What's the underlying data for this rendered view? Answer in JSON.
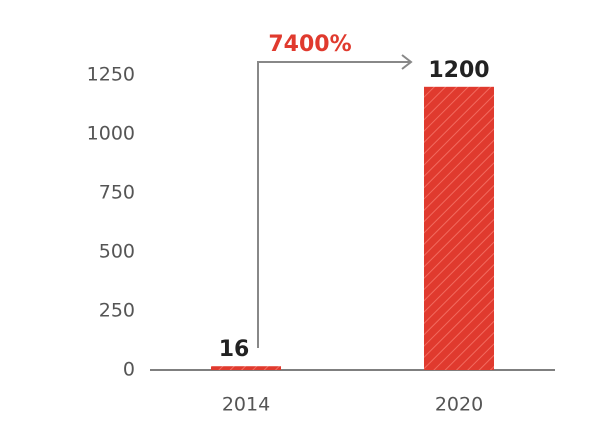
{
  "chart_data": {
    "type": "bar",
    "categories": [
      "2014",
      "2020"
    ],
    "values": [
      16,
      1200
    ],
    "color": "#e03a2e",
    "annotation": "7400%",
    "ylim": [
      0,
      1250
    ],
    "yticks": [
      0,
      250,
      500,
      750,
      1000,
      1250
    ],
    "grid": false
  }
}
